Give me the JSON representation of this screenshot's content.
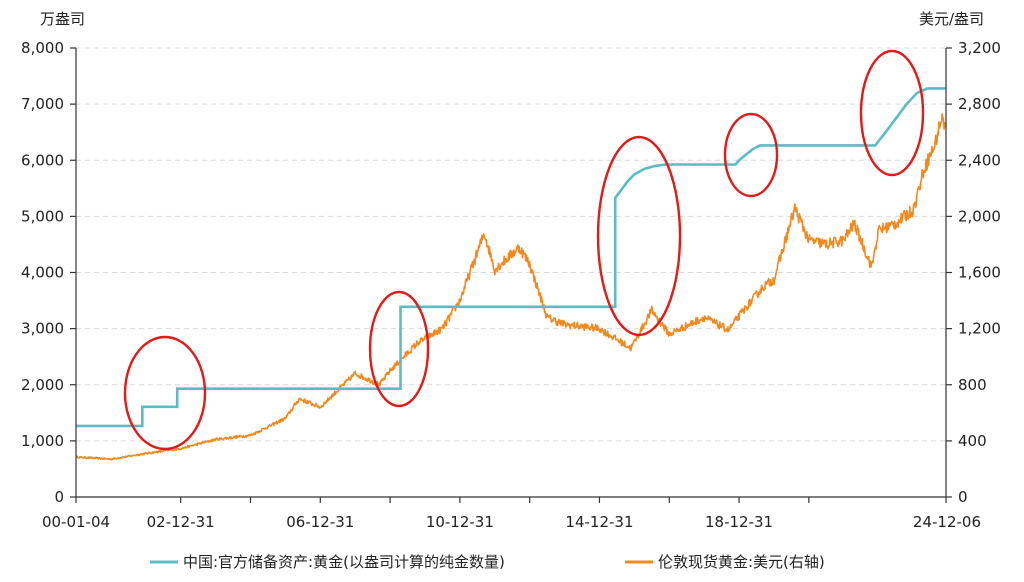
{
  "chart_data": {
    "type": "line",
    "left_axis": {
      "label": "万盎司",
      "ticks": [
        "0",
        "1,000",
        "2,000",
        "3,000",
        "4,000",
        "5,000",
        "6,000",
        "7,000",
        "8,000"
      ],
      "ylim": [
        0,
        8000
      ]
    },
    "right_axis": {
      "label": "美元/盎司",
      "ticks": [
        "0",
        "400",
        "800",
        "1,200",
        "1,600",
        "2,000",
        "2,400",
        "2,800",
        "3,200"
      ],
      "ylim": [
        0,
        3200
      ]
    },
    "x_ticks": [
      "00-01-04",
      "02-12-31",
      "06-12-31",
      "10-12-31",
      "14-12-31",
      "18-12-31",
      "24-12-06"
    ],
    "x_tick_years": [
      2000.0,
      2003.0,
      2007.0,
      2011.0,
      2015.0,
      2019.0,
      2024.93
    ],
    "grid": true,
    "legend_position": "bottom",
    "series": [
      {
        "name": "中国:官方储备资产:黄金(以盎司计算的纯金数量)",
        "axis": "left",
        "color": "#5bbcc3",
        "step": true,
        "x": [
          2000.0,
          2001.9,
          2001.9,
          2002.9,
          2002.9,
          2009.3,
          2009.3,
          2015.45,
          2015.45,
          2015.6,
          2015.8,
          2016.0,
          2016.3,
          2016.6,
          2016.9,
          2018.9,
          2019.0,
          2019.2,
          2019.4,
          2019.6,
          2019.8,
          2022.9,
          2023.2,
          2023.5,
          2023.8,
          2024.1,
          2024.4,
          2024.93
        ],
        "y": [
          1267,
          1267,
          1608,
          1608,
          1929,
          1929,
          3389,
          3389,
          5331,
          5450,
          5620,
          5750,
          5850,
          5900,
          5924,
          5924,
          6000,
          6100,
          6200,
          6264,
          6264,
          6264,
          6500,
          6750,
          7000,
          7200,
          7280,
          7280
        ]
      },
      {
        "name": "伦敦现货黄金:美元(右轴)",
        "axis": "right",
        "color": "#f08a1e",
        "x": [
          2000.0,
          2001.0,
          2002.0,
          2003.0,
          2004.0,
          2005.0,
          2006.0,
          2006.4,
          2007.0,
          2008.0,
          2008.7,
          2009.0,
          2009.8,
          2010.5,
          2011.0,
          2011.7,
          2012.0,
          2012.7,
          2013.0,
          2013.5,
          2014.0,
          2015.0,
          2015.9,
          2016.5,
          2017.0,
          2018.0,
          2018.7,
          2019.0,
          2019.7,
          2020.0,
          2020.6,
          2021.0,
          2021.5,
          2022.0,
          2022.3,
          2022.8,
          2023.0,
          2023.5,
          2024.0,
          2024.3,
          2024.6,
          2024.8,
          2024.93
        ],
        "y": [
          285,
          270,
          310,
          345,
          410,
          440,
          560,
          700,
          640,
          880,
          800,
          900,
          1100,
          1200,
          1400,
          1880,
          1620,
          1780,
          1660,
          1280,
          1230,
          1200,
          1060,
          1330,
          1160,
          1280,
          1190,
          1290,
          1500,
          1550,
          2060,
          1830,
          1800,
          1830,
          1950,
          1640,
          1900,
          1950,
          2050,
          2340,
          2500,
          2700,
          2640
        ]
      }
    ],
    "annotations": [
      {
        "shape": "ellipse",
        "color": "#e11b1b",
        "near_year": 2002.5
      },
      {
        "shape": "ellipse",
        "color": "#e11b1b",
        "near_year": 2009.3
      },
      {
        "shape": "ellipse",
        "color": "#e11b1b",
        "near_year": 2015.5
      },
      {
        "shape": "ellipse",
        "color": "#e11b1b",
        "near_year": 2019.3
      },
      {
        "shape": "ellipse",
        "color": "#e11b1b",
        "near_year": 2023.9
      }
    ]
  }
}
